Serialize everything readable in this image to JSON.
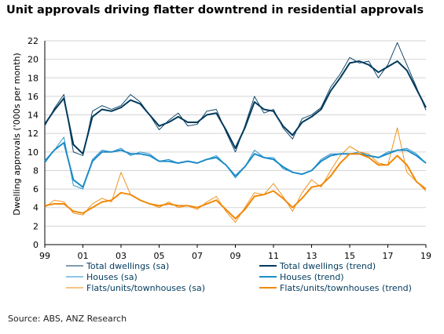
{
  "chart_data": {
    "type": "line",
    "title": "Unit approvals driving flatter downtrend in residential approvals",
    "ylabel": "Dwelling approvals ('000s per month)",
    "xlabel": "",
    "source": "Source: ABS, ANZ Research",
    "ylim": [
      0,
      22
    ],
    "xlim": [
      1999,
      2019
    ],
    "y_ticks": [
      "0",
      "2",
      "4",
      "6",
      "8",
      "10",
      "12",
      "14",
      "16",
      "18",
      "20",
      "22"
    ],
    "x_ticks": [
      "99",
      "01",
      "03",
      "05",
      "07",
      "09",
      "11",
      "13",
      "15",
      "17",
      "19"
    ],
    "grid": "horizontal",
    "legend_position": "bottom",
    "colors": {
      "total": "#003a5d",
      "houses": "#1d8cc8",
      "flats": "#f0890a"
    },
    "series": [
      {
        "name": "Total dwellings (sa)",
        "key": "total",
        "kind": "sa",
        "x": [
          1999.0,
          1999.5,
          2000.0,
          2000.5,
          2001.0,
          2001.5,
          2002.0,
          2002.5,
          2003.0,
          2003.5,
          2004.0,
          2004.5,
          2005.0,
          2005.5,
          2006.0,
          2006.5,
          2007.0,
          2007.5,
          2008.0,
          2008.5,
          2009.0,
          2009.5,
          2010.0,
          2010.5,
          2011.0,
          2011.5,
          2012.0,
          2012.5,
          2013.0,
          2013.5,
          2014.0,
          2014.5,
          2015.0,
          2015.5,
          2016.0,
          2016.5,
          2017.0,
          2017.5,
          2018.0,
          2018.5,
          2019.0
        ],
        "values": [
          12.8,
          14.7,
          16.2,
          10.0,
          9.6,
          14.4,
          15.0,
          14.6,
          15.0,
          16.2,
          15.4,
          14.0,
          12.4,
          13.4,
          14.2,
          12.8,
          13.0,
          14.4,
          14.6,
          12.2,
          10.0,
          12.8,
          16.0,
          14.2,
          14.6,
          12.6,
          11.4,
          13.6,
          14.0,
          14.8,
          17.0,
          18.4,
          20.2,
          19.6,
          19.8,
          18.0,
          19.4,
          21.8,
          19.4,
          17.0,
          14.5
        ]
      },
      {
        "name": "Total dwellings (trend)",
        "key": "total",
        "kind": "trend",
        "x": [
          1999.0,
          1999.5,
          2000.0,
          2000.5,
          2001.0,
          2001.5,
          2002.0,
          2002.5,
          2003.0,
          2003.5,
          2004.0,
          2004.5,
          2005.0,
          2005.5,
          2006.0,
          2006.5,
          2007.0,
          2007.5,
          2008.0,
          2008.5,
          2009.0,
          2009.5,
          2010.0,
          2010.5,
          2011.0,
          2011.5,
          2012.0,
          2012.5,
          2013.0,
          2013.5,
          2014.0,
          2014.5,
          2015.0,
          2015.5,
          2016.0,
          2016.5,
          2017.0,
          2017.5,
          2018.0,
          2018.5,
          2019.0
        ],
        "values": [
          13.0,
          14.5,
          15.8,
          10.8,
          9.8,
          13.8,
          14.6,
          14.4,
          14.8,
          15.6,
          15.2,
          14.0,
          12.8,
          13.2,
          13.8,
          13.2,
          13.2,
          14.0,
          14.2,
          12.4,
          10.4,
          12.6,
          15.4,
          14.6,
          14.4,
          12.8,
          11.8,
          13.2,
          13.8,
          14.6,
          16.6,
          18.0,
          19.6,
          19.8,
          19.4,
          18.6,
          19.2,
          19.8,
          18.8,
          16.8,
          14.8
        ]
      },
      {
        "name": "Houses (sa)",
        "key": "houses",
        "kind": "sa",
        "x": [
          1999.0,
          1999.5,
          2000.0,
          2000.5,
          2001.0,
          2001.5,
          2002.0,
          2002.5,
          2003.0,
          2003.5,
          2004.0,
          2004.5,
          2005.0,
          2005.5,
          2006.0,
          2006.5,
          2007.0,
          2007.5,
          2008.0,
          2008.5,
          2009.0,
          2009.5,
          2010.0,
          2010.5,
          2011.0,
          2011.5,
          2012.0,
          2012.5,
          2013.0,
          2013.5,
          2014.0,
          2014.5,
          2015.0,
          2015.5,
          2016.0,
          2016.5,
          2017.0,
          2017.5,
          2018.0,
          2018.5,
          2019.0
        ],
        "values": [
          8.8,
          10.2,
          11.6,
          6.4,
          6.0,
          9.2,
          10.2,
          10.0,
          10.4,
          9.6,
          10.0,
          9.8,
          9.0,
          9.2,
          8.8,
          9.0,
          8.8,
          9.2,
          9.6,
          8.6,
          7.2,
          8.4,
          10.2,
          9.4,
          9.4,
          8.2,
          7.8,
          7.6,
          8.0,
          9.2,
          9.8,
          9.8,
          9.8,
          10.0,
          9.6,
          9.4,
          10.0,
          10.2,
          10.4,
          9.8,
          8.8
        ]
      },
      {
        "name": "Houses (trend)",
        "key": "houses",
        "kind": "trend",
        "x": [
          1999.0,
          1999.5,
          2000.0,
          2000.5,
          2001.0,
          2001.5,
          2002.0,
          2002.5,
          2003.0,
          2003.5,
          2004.0,
          2004.5,
          2005.0,
          2005.5,
          2006.0,
          2006.5,
          2007.0,
          2007.5,
          2008.0,
          2008.5,
          2009.0,
          2009.5,
          2010.0,
          2010.5,
          2011.0,
          2011.5,
          2012.0,
          2012.5,
          2013.0,
          2013.5,
          2014.0,
          2014.5,
          2015.0,
          2015.5,
          2016.0,
          2016.5,
          2017.0,
          2017.5,
          2018.0,
          2018.5,
          2019.0
        ],
        "values": [
          9.0,
          10.2,
          11.0,
          7.0,
          6.2,
          9.0,
          10.0,
          10.0,
          10.2,
          9.8,
          9.8,
          9.6,
          9.0,
          9.0,
          8.8,
          9.0,
          8.8,
          9.2,
          9.4,
          8.6,
          7.4,
          8.4,
          9.8,
          9.4,
          9.2,
          8.4,
          7.8,
          7.6,
          8.0,
          9.0,
          9.6,
          9.8,
          9.8,
          9.8,
          9.6,
          9.4,
          9.8,
          10.2,
          10.2,
          9.6,
          8.8
        ]
      },
      {
        "name": "Flats/units/townhouses (sa)",
        "key": "flats",
        "kind": "sa",
        "x": [
          1999.0,
          1999.5,
          2000.0,
          2000.5,
          2001.0,
          2001.5,
          2002.0,
          2002.5,
          2003.0,
          2003.5,
          2004.0,
          2004.5,
          2005.0,
          2005.5,
          2006.0,
          2006.5,
          2007.0,
          2007.5,
          2008.0,
          2008.5,
          2009.0,
          2009.5,
          2010.0,
          2010.5,
          2011.0,
          2011.5,
          2012.0,
          2012.5,
          2013.0,
          2013.5,
          2014.0,
          2014.5,
          2015.0,
          2015.5,
          2016.0,
          2016.5,
          2017.0,
          2017.5,
          2018.0,
          2018.5,
          2019.0
        ],
        "values": [
          4.0,
          4.8,
          4.6,
          3.4,
          3.2,
          4.4,
          5.0,
          4.6,
          7.8,
          5.4,
          4.8,
          4.4,
          4.0,
          4.6,
          4.0,
          4.2,
          3.8,
          4.6,
          5.2,
          3.6,
          2.4,
          4.0,
          5.6,
          5.4,
          6.6,
          5.2,
          3.6,
          5.6,
          7.0,
          6.2,
          8.0,
          9.6,
          10.6,
          10.0,
          9.8,
          8.8,
          8.6,
          12.6,
          7.8,
          6.8,
          5.8
        ]
      },
      {
        "name": "Flats/units/townhouses (trend)",
        "key": "flats",
        "kind": "trend",
        "x": [
          1999.0,
          1999.5,
          2000.0,
          2000.5,
          2001.0,
          2001.5,
          2002.0,
          2002.5,
          2003.0,
          2003.5,
          2004.0,
          2004.5,
          2005.0,
          2005.5,
          2006.0,
          2006.5,
          2007.0,
          2007.5,
          2008.0,
          2008.5,
          2009.0,
          2009.5,
          2010.0,
          2010.5,
          2011.0,
          2011.5,
          2012.0,
          2012.5,
          2013.0,
          2013.5,
          2014.0,
          2014.5,
          2015.0,
          2015.5,
          2016.0,
          2016.5,
          2017.0,
          2017.5,
          2018.0,
          2018.5,
          2019.0
        ],
        "values": [
          4.2,
          4.4,
          4.4,
          3.6,
          3.4,
          4.0,
          4.6,
          4.8,
          5.6,
          5.4,
          4.8,
          4.4,
          4.2,
          4.4,
          4.2,
          4.2,
          4.0,
          4.4,
          4.8,
          3.8,
          2.8,
          3.8,
          5.2,
          5.4,
          5.8,
          5.0,
          4.0,
          5.0,
          6.2,
          6.4,
          7.4,
          8.8,
          9.8,
          9.8,
          9.4,
          8.6,
          8.6,
          9.6,
          8.6,
          6.8,
          6.0
        ]
      }
    ]
  }
}
